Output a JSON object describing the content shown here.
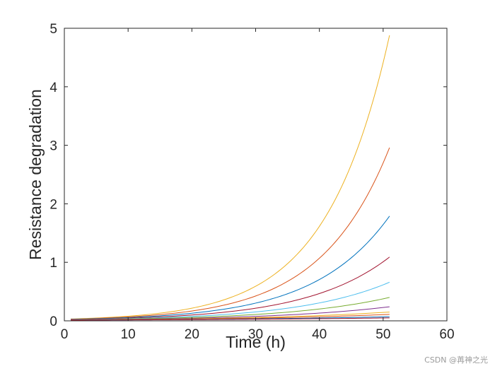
{
  "chart_data": {
    "type": "line",
    "title": "",
    "xlabel": "Time (h)",
    "ylabel": "Resistance degradation",
    "xlim": [
      0,
      60
    ],
    "ylim": [
      0,
      5
    ],
    "xticks": [
      0,
      10,
      20,
      30,
      40,
      50,
      60
    ],
    "yticks": [
      0,
      1,
      2,
      3,
      4,
      5
    ],
    "grid": false,
    "legend": "none",
    "model": "y = a * exp(b * t)",
    "x": [
      1,
      5,
      10,
      15,
      20,
      25,
      30,
      35,
      40,
      45,
      51
    ],
    "series": [
      {
        "color": "#EDB120",
        "a": 0.032,
        "end_value": 4.88
      },
      {
        "color": "#D95319",
        "a": 0.029,
        "end_value": 2.96
      },
      {
        "color": "#0072BD",
        "a": 0.026,
        "end_value": 1.79
      },
      {
        "color": "#A2142F",
        "a": 0.023,
        "end_value": 1.09
      },
      {
        "color": "#4DBEEE",
        "a": 0.02,
        "end_value": 0.66
      },
      {
        "color": "#77AC30",
        "a": 0.018,
        "end_value": 0.4
      },
      {
        "color": "#7E2F8E",
        "a": 0.016,
        "end_value": 0.24
      },
      {
        "color": "#EDB120",
        "a": 0.015,
        "end_value": 0.15
      },
      {
        "color": "#D95319",
        "a": 0.014,
        "end_value": 0.11
      },
      {
        "color": "#0072BD",
        "a": 0.013,
        "end_value": 0.07
      },
      {
        "color": "#A2142F",
        "a": 0.012,
        "end_value": 0.05
      }
    ]
  },
  "watermark": "CSDN @苒神之光"
}
